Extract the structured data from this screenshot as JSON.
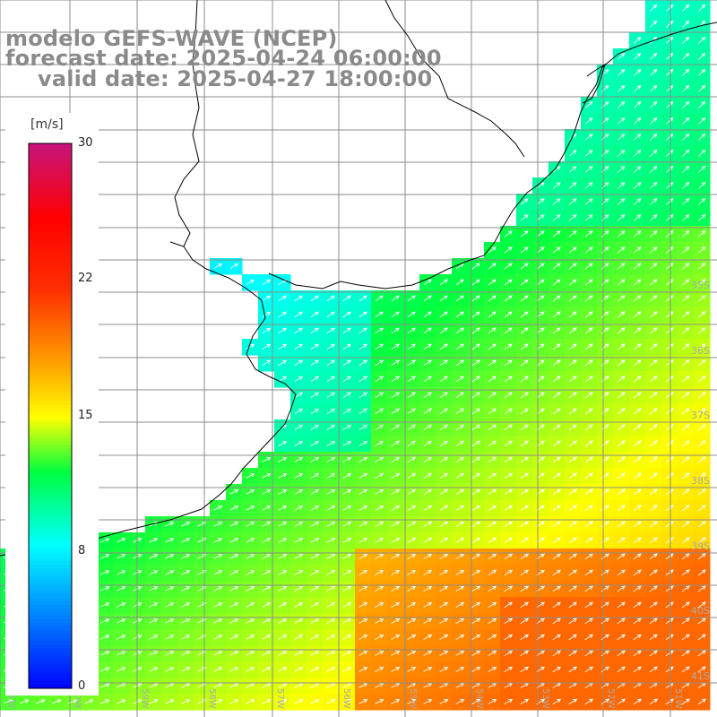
{
  "titles": {
    "model": "modelo GEFS-WAVE (NCEP)",
    "forecast": "forecast date: 2025-04-24 06:00:00",
    "valid": "valid date: 2025-04-27 18:00:00"
  },
  "colorbar": {
    "unit": "[m/s]",
    "ticks": [
      "30",
      "22",
      "15",
      "8",
      "0"
    ],
    "tick_values": [
      30,
      22,
      15,
      8,
      0
    ],
    "min": 0,
    "max": 30,
    "stops": [
      {
        "v": 0,
        "color": "#0000ff"
      },
      {
        "v": 4,
        "color": "#0080ff"
      },
      {
        "v": 8,
        "color": "#00ffff"
      },
      {
        "v": 12,
        "color": "#00ff40"
      },
      {
        "v": 15,
        "color": "#ffff00"
      },
      {
        "v": 18,
        "color": "#ffa000"
      },
      {
        "v": 22,
        "color": "#ff3000"
      },
      {
        "v": 26,
        "color": "#ff0000"
      },
      {
        "v": 30,
        "color": "#c8147a"
      }
    ]
  },
  "lat_labels": [
    "35S",
    "36S",
    "37S",
    "38S",
    "39S",
    "40S",
    "41S"
  ],
  "lon_labels": [
    "61W",
    "60W",
    "59W",
    "58W",
    "57W",
    "56W",
    "55W",
    "54W",
    "53W",
    "52W",
    "51W"
  ],
  "colors": {
    "land": "#ffffff",
    "grid": "#8c8c8c",
    "coast": "#000000",
    "arrow": "#ffffff",
    "title": "#8a8a8a"
  }
}
